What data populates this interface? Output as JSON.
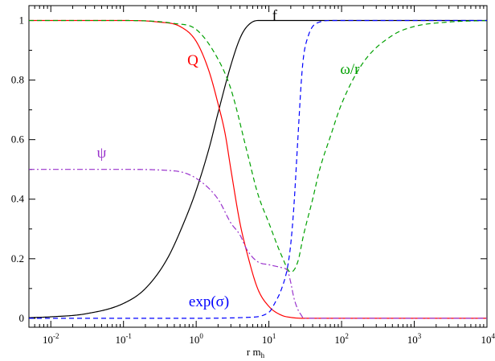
{
  "chart_data": {
    "type": "line",
    "title": "",
    "xlabel": "r m",
    "xlabel_sub": "h",
    "ylabel": "",
    "xscale": "log",
    "xlim": [
      0.005,
      10000
    ],
    "ylim": [
      -0.03,
      1.05
    ],
    "grid": false,
    "legend": "none",
    "y_ticks": [
      {
        "value": 0,
        "label": "0"
      },
      {
        "value": 0.2,
        "label": "0.2"
      },
      {
        "value": 0.4,
        "label": "0.4"
      },
      {
        "value": 0.6,
        "label": "0.6"
      },
      {
        "value": 0.8,
        "label": "0.8"
      },
      {
        "value": 1,
        "label": "1"
      }
    ],
    "x_ticks": [
      {
        "value": 0.01,
        "base": "10",
        "exp": "-2"
      },
      {
        "value": 0.1,
        "base": "10",
        "exp": "-1"
      },
      {
        "value": 1,
        "base": "10",
        "exp": "0"
      },
      {
        "value": 10,
        "base": "10",
        "exp": "1"
      },
      {
        "value": 100,
        "base": "10",
        "exp": "2"
      },
      {
        "value": 1000,
        "base": "10",
        "exp": "3"
      },
      {
        "value": 10000,
        "base": "10",
        "exp": "4"
      }
    ],
    "series": [
      {
        "name": "f",
        "color": "#000000",
        "dash": "solid",
        "label_at": [
          12,
          1.0
        ],
        "x": [
          0.005,
          0.01,
          0.03,
          0.1,
          0.2,
          0.4,
          0.7,
          1.0,
          1.5,
          2.0,
          3.0,
          4.0,
          5.0,
          7.0,
          10.0,
          20.0,
          100.0,
          10000.0
        ],
        "y": [
          0.002,
          0.005,
          0.015,
          0.05,
          0.1,
          0.2,
          0.33,
          0.43,
          0.57,
          0.69,
          0.85,
          0.94,
          0.98,
          1.0,
          1.0,
          1.0,
          1.0,
          1.0
        ]
      },
      {
        "name": "Q",
        "color": "#ff0000",
        "dash": "solid",
        "label_at": [
          0.9,
          0.85
        ],
        "x": [
          0.005,
          0.1,
          0.3,
          0.6,
          1.0,
          1.5,
          2.0,
          2.5,
          3.0,
          4.0,
          5.0,
          7.0,
          10.0,
          15.0,
          20.0,
          30.0,
          10000.0
        ],
        "y": [
          1.0,
          1.0,
          0.995,
          0.98,
          0.93,
          0.83,
          0.72,
          0.62,
          0.5,
          0.32,
          0.22,
          0.1,
          0.04,
          0.01,
          0.003,
          0.0,
          0.0
        ]
      },
      {
        "name": "ω/r",
        "color": "#00a000",
        "dash": "dashed",
        "label_at": [
          130,
          0.82
        ],
        "x": [
          0.005,
          0.1,
          0.5,
          1.0,
          2.0,
          3.0,
          5.0,
          7.0,
          10.0,
          15.0,
          20.0,
          25.0,
          30.0,
          40.0,
          50.0,
          70.0,
          100.0,
          200.0,
          500.0,
          1000.0,
          3000.0,
          10000.0
        ],
        "y": [
          1.0,
          1.0,
          0.99,
          0.97,
          0.87,
          0.77,
          0.56,
          0.42,
          0.32,
          0.21,
          0.155,
          0.19,
          0.28,
          0.4,
          0.5,
          0.61,
          0.72,
          0.86,
          0.95,
          0.98,
          0.995,
          1.0
        ]
      },
      {
        "name": "ψ",
        "color": "#9932cc",
        "dash": "dashdot",
        "label_at": [
          0.05,
          0.54
        ],
        "x": [
          0.005,
          0.1,
          0.5,
          1.0,
          2.0,
          3.0,
          4.0,
          5.0,
          7.0,
          10.0,
          15.0,
          18.0,
          20.0,
          22.0,
          25.0,
          28.0,
          30.0,
          10000.0
        ],
        "y": [
          0.5,
          0.5,
          0.495,
          0.47,
          0.4,
          0.32,
          0.28,
          0.23,
          0.19,
          0.18,
          0.17,
          0.16,
          0.12,
          0.07,
          0.03,
          0.01,
          0.0,
          0.0
        ]
      },
      {
        "name": "exp(σ)",
        "color": "#0000ff",
        "dash": "dashed",
        "label_at": [
          1.5,
          0.04
        ],
        "x": [
          0.005,
          1.0,
          5.0,
          10.0,
          12.0,
          15.0,
          18.0,
          20.0,
          22.0,
          25.0,
          28.0,
          30.0,
          35.0,
          40.0,
          50.0,
          70.0,
          100.0,
          10000.0
        ],
        "y": [
          0.0,
          0.0,
          0.003,
          0.02,
          0.05,
          0.1,
          0.17,
          0.25,
          0.37,
          0.6,
          0.8,
          0.88,
          0.95,
          0.98,
          0.995,
          1.0,
          1.0,
          1.0
        ]
      }
    ]
  }
}
